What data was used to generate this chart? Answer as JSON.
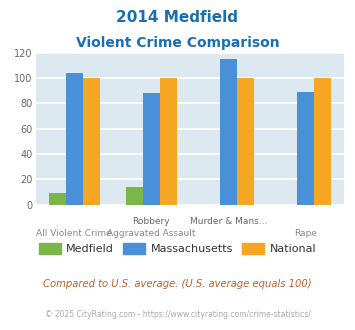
{
  "title_line1": "2014 Medfield",
  "title_line2": "Violent Crime Comparison",
  "title_color": "#1a6faf",
  "cat_labels_row1": [
    "",
    "Robbery",
    "Murder & Mans...",
    ""
  ],
  "cat_labels_row2": [
    "All Violent Crime",
    "Aggravated Assault",
    "",
    "Rape"
  ],
  "medfield": [
    9,
    14,
    0,
    0
  ],
  "massachusetts": [
    104,
    88,
    115,
    89
  ],
  "national": [
    100,
    100,
    100,
    100
  ],
  "medfield_color": "#7ab648",
  "massachusetts_color": "#4a90d9",
  "national_color": "#f5a623",
  "ylim": [
    0,
    120
  ],
  "yticks": [
    0,
    20,
    40,
    60,
    80,
    100,
    120
  ],
  "background_color": "#dce9f0",
  "grid_color": "#ffffff",
  "footnote1": "Compared to U.S. average. (U.S. average equals 100)",
  "footnote2": "© 2025 CityRating.com - https://www.cityrating.com/crime-statistics/",
  "footnote1_color": "#c0602a",
  "footnote2_color": "#aaaaaa",
  "legend_labels": [
    "Medfield",
    "Massachusetts",
    "National"
  ]
}
